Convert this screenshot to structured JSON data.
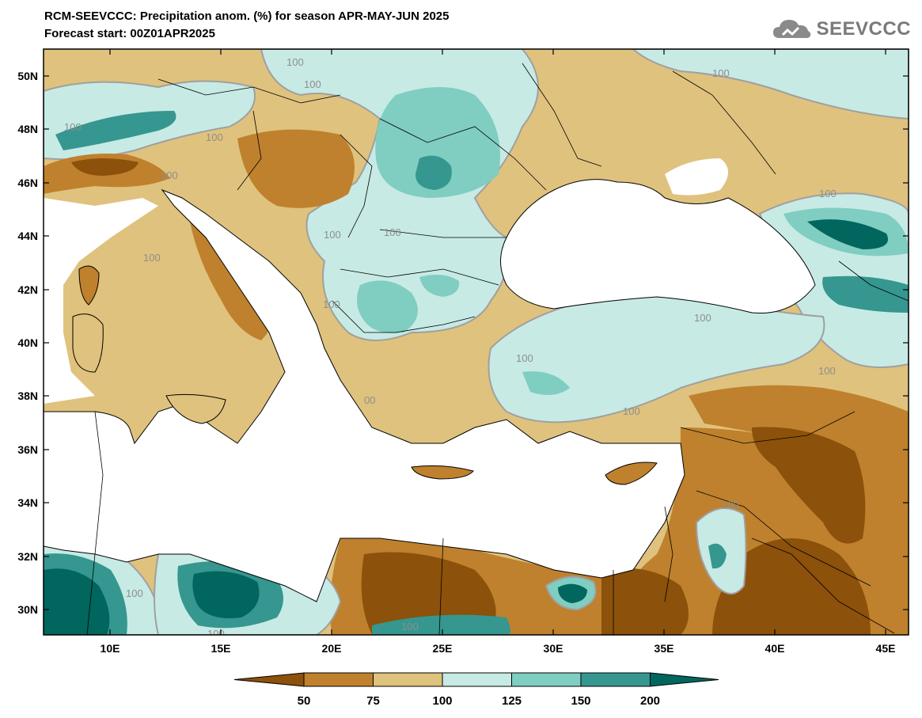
{
  "header": {
    "title": "RCM-SEEVCCC: Precipitation anom. (%) for season APR-MAY-JUN 2025",
    "subtitle": "Forecast start: 00Z01APR2025"
  },
  "logo": {
    "text": "SEEVCCC",
    "icon": "cloud-icon"
  },
  "axes": {
    "lat_labels": [
      "50N",
      "48N",
      "46N",
      "44N",
      "42N",
      "40N",
      "38N",
      "36N",
      "34N",
      "32N",
      "30N"
    ],
    "lon_labels": [
      "10E",
      "15E",
      "20E",
      "25E",
      "30E",
      "35E",
      "40E",
      "45E"
    ]
  },
  "contour_labels": [
    "100",
    "100",
    "100",
    "100",
    "100",
    "100",
    "100",
    "100",
    "100",
    "100",
    "100",
    "100",
    "100",
    "100",
    "100",
    "100",
    "100",
    "100",
    "00",
    "100"
  ],
  "colorbar": {
    "labels": [
      "50",
      "75",
      "100",
      "125",
      "150",
      "200"
    ],
    "colors": [
      "#8c510a",
      "#bf812d",
      "#dfc27d",
      "#c7eae5",
      "#80cdc1",
      "#35978f",
      "#01665e"
    ]
  },
  "palette": {
    "sea": "#ffffff",
    "strong_dry": "#8c510a",
    "dry": "#bf812d",
    "slight_dry": "#dfc27d",
    "slight_wet": "#c7eae5",
    "wet": "#80cdc1",
    "very_wet": "#35978f",
    "extreme_wet": "#01665e",
    "contour": "#a0a0a0"
  }
}
